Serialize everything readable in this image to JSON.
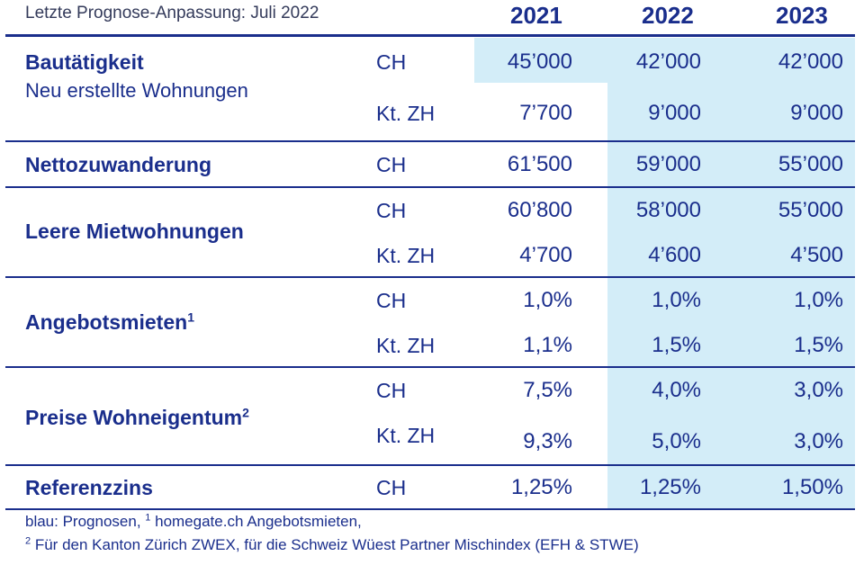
{
  "header": {
    "subtitle": "Letzte Prognose-Anpassung: Juli 2022",
    "years": [
      "2021",
      "2022",
      "2023"
    ]
  },
  "rows": [
    {
      "label": "Bautätigkeit",
      "sublabel": "Neu erstellte Wohnungen",
      "footnote": "",
      "lines": [
        {
          "region": "CH",
          "values": [
            "45’000",
            "42’000",
            "42’000"
          ]
        },
        {
          "region": "Kt. ZH",
          "values": [
            "7’700",
            "9’000",
            "9’000"
          ]
        }
      ]
    },
    {
      "label": "Nettozuwanderung",
      "sublabel": "",
      "footnote": "",
      "lines": [
        {
          "region": "CH",
          "values": [
            "61’500",
            "59’000",
            "55’000"
          ]
        }
      ]
    },
    {
      "label": "Leere Mietwohnungen",
      "sublabel": "",
      "footnote": "",
      "lines": [
        {
          "region": "CH",
          "values": [
            "60’800",
            "58’000",
            "55’000"
          ]
        },
        {
          "region": "Kt. ZH",
          "values": [
            "4’700",
            "4’600",
            "4’500"
          ]
        }
      ]
    },
    {
      "label": "Angebotsmieten",
      "sublabel": "",
      "footnote": "1",
      "lines": [
        {
          "region": "CH",
          "values": [
            "1,0%",
            "1,0%",
            "1,0%"
          ]
        },
        {
          "region": "Kt. ZH",
          "values": [
            "1,1%",
            "1,5%",
            "1,5%"
          ]
        }
      ]
    },
    {
      "label": "Preise Wohneigentum",
      "sublabel": "",
      "footnote": "2",
      "lines": [
        {
          "region": "CH",
          "values": [
            "7,5%",
            "4,0%",
            "3,0%"
          ]
        },
        {
          "region": "Kt. ZH",
          "values": [
            "9,3%",
            "5,0%",
            "3,0%"
          ]
        }
      ]
    },
    {
      "label": "Referenzzins",
      "sublabel": "",
      "footnote": "",
      "lines": [
        {
          "region": "CH",
          "values": [
            "1,25%",
            "1,25%",
            "1,50%"
          ]
        }
      ]
    }
  ],
  "footnotes": {
    "line1_prefix": "blau: Prognosen, ",
    "line1_mark": "1",
    "line1_text": " homegate.ch Angebotsmieten,",
    "line2_mark": "2",
    "line2_text": " Für den Kanton Zürich ZWEX, für die Schweiz Wüest Partner Mischindex (EFH & STWE)"
  },
  "colors": {
    "text": "#1a2e8c",
    "forecast_shade": "#d3edf8"
  }
}
